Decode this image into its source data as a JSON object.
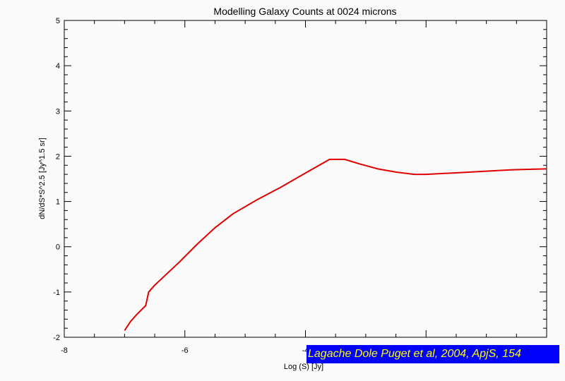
{
  "chart_data": {
    "type": "line",
    "title": "Modelling Galaxy Counts at 0024 microns",
    "xlabel": "Log (S) [Jy]",
    "ylabel": "dN/dS*S^2.5 [Jy^1.5 sr]",
    "xlim": [
      -8,
      0
    ],
    "ylim": [
      -2,
      5
    ],
    "xticks": [
      -8,
      -6,
      -4,
      -2,
      0
    ],
    "xtick_labels": [
      "-8",
      "-6",
      "-4",
      "",
      ""
    ],
    "yticks": [
      -2,
      -1,
      0,
      1,
      2,
      3,
      4,
      5
    ],
    "ytick_labels": [
      "-2",
      "-1",
      "0",
      "1",
      "2",
      "3",
      "4",
      "5"
    ],
    "grid": false,
    "line_color": "#e00000",
    "series": [
      {
        "x": [
          -7.0,
          -6.9,
          -6.8,
          -6.65,
          -6.6,
          -6.5,
          -6.3,
          -6.1,
          -5.8,
          -5.5,
          -5.2,
          -4.8,
          -4.4,
          -4.0,
          -3.6,
          -3.35,
          -3.1,
          -2.8,
          -2.5,
          -2.2,
          -2.0,
          -1.7,
          -1.4,
          -1.0,
          -0.6,
          -0.3,
          0.0
        ],
        "y": [
          -1.85,
          -1.65,
          -1.5,
          -1.3,
          -1.0,
          -0.85,
          -0.6,
          -0.35,
          0.05,
          0.42,
          0.73,
          1.04,
          1.32,
          1.63,
          1.93,
          1.93,
          1.83,
          1.72,
          1.65,
          1.6,
          1.6,
          1.62,
          1.64,
          1.67,
          1.7,
          1.71,
          1.72
        ]
      }
    ]
  },
  "credit_label": "Lagache Dole Puget et al, 2004, ApjS, 154"
}
